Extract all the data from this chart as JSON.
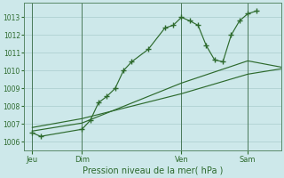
{
  "background_color": "#cde8ea",
  "grid_color": "#aacccc",
  "line_color": "#2d6a2d",
  "title": "Pression niveau de la mer( hPa )",
  "xlabel_ticks": [
    "Jeu",
    "Dim",
    "Ven",
    "Sam"
  ],
  "xlabel_tick_positions": [
    0,
    24,
    72,
    104
  ],
  "xlim": [
    -4,
    120
  ],
  "ylim": [
    1005.5,
    1013.8
  ],
  "yticks": [
    1006,
    1007,
    1008,
    1009,
    1010,
    1011,
    1012,
    1013
  ],
  "vline_positions": [
    0,
    24,
    72,
    104
  ],
  "series1_x": [
    0,
    4,
    24,
    28,
    32,
    36,
    40,
    44,
    48,
    56,
    64,
    68,
    72,
    76,
    80,
    84,
    88,
    92,
    96,
    100,
    104,
    108
  ],
  "series1_y": [
    1006.5,
    1006.3,
    1006.7,
    1007.2,
    1008.2,
    1008.55,
    1009.0,
    1010.0,
    1010.5,
    1011.2,
    1012.4,
    1012.55,
    1013.0,
    1012.8,
    1012.55,
    1011.4,
    1010.6,
    1010.5,
    1012.0,
    1012.8,
    1013.2,
    1013.35
  ],
  "series2_x": [
    0,
    24,
    72,
    104,
    120
  ],
  "series2_y": [
    1006.6,
    1007.05,
    1009.3,
    1010.55,
    1010.2
  ],
  "series3_x": [
    0,
    24,
    72,
    104,
    120
  ],
  "series3_y": [
    1006.8,
    1007.3,
    1008.7,
    1009.8,
    1010.1
  ]
}
